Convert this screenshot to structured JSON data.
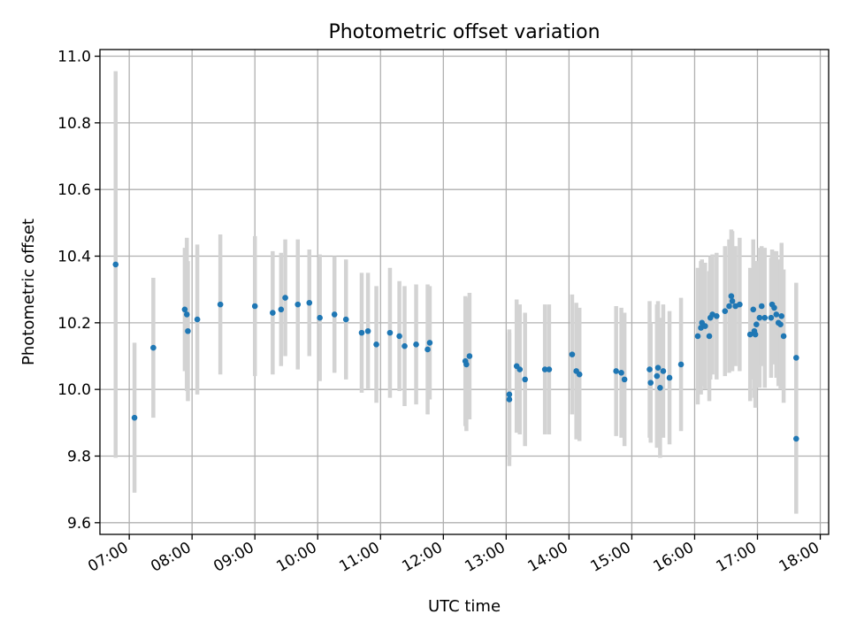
{
  "chart_data": {
    "type": "scatter",
    "title": "Photometric offset variation",
    "xlabel": "UTC time",
    "ylabel": "Photometric offset",
    "xlim": [
      "06:32",
      "18:08"
    ],
    "ylim": [
      9.565,
      11.02
    ],
    "xticks": [
      "07:00",
      "08:00",
      "09:00",
      "10:00",
      "11:00",
      "12:00",
      "13:00",
      "14:00",
      "15:00",
      "16:00",
      "17:00",
      "18:00"
    ],
    "yticks": [
      9.6,
      9.8,
      10.0,
      10.2,
      10.4,
      10.6,
      10.8,
      11.0
    ],
    "grid": true,
    "colors": {
      "point": "#1f77b4",
      "errorbar": "#d3d3d3",
      "grid": "#b0b0b0"
    },
    "series": [
      {
        "x": [
          "06:47",
          "07:05",
          "07:23",
          "07:53",
          "07:55",
          "07:56",
          "08:05",
          "08:27",
          "09:00",
          "09:17",
          "09:25",
          "09:29",
          "09:41",
          "09:52",
          "10:02",
          "10:16",
          "10:27",
          "10:42",
          "10:48",
          "10:56",
          "11:09",
          "11:18",
          "11:23",
          "11:34",
          "11:45",
          "11:47",
          "12:21",
          "12:22",
          "12:25",
          "13:03",
          "13:03",
          "13:10",
          "13:13",
          "13:18",
          "13:37",
          "13:41",
          "14:03",
          "14:07",
          "14:10",
          "14:45",
          "14:50",
          "14:53",
          "15:17",
          "15:18",
          "15:24",
          "15:25",
          "15:27",
          "15:30",
          "15:36",
          "15:47",
          "16:03",
          "16:06",
          "16:07",
          "16:10",
          "16:14",
          "16:15",
          "16:17",
          "16:21",
          "16:29",
          "16:33",
          "16:35",
          "16:36",
          "16:39",
          "16:43",
          "16:53",
          "16:56",
          "16:57",
          "16:58",
          "16:59",
          "17:02",
          "17:04",
          "17:07",
          "17:13",
          "17:14",
          "17:16",
          "17:18",
          "17:20",
          "17:22",
          "17:23",
          "17:25",
          "17:37"
        ],
        "y": [
          10.375,
          9.915,
          10.125,
          10.24,
          10.225,
          10.175,
          10.21,
          10.255,
          10.25,
          10.23,
          10.24,
          10.275,
          10.255,
          10.26,
          10.215,
          10.225,
          10.21,
          10.17,
          10.175,
          10.135,
          10.17,
          10.16,
          10.13,
          10.135,
          10.12,
          10.14,
          10.085,
          10.075,
          10.1,
          9.985,
          9.97,
          10.07,
          10.06,
          10.03,
          10.06,
          10.06,
          10.105,
          10.055,
          10.045,
          10.055,
          10.05,
          10.03,
          10.06,
          10.02,
          10.04,
          10.065,
          10.005,
          10.055,
          10.035,
          10.075,
          10.16,
          10.185,
          10.2,
          10.19,
          10.16,
          10.215,
          10.225,
          10.22,
          10.235,
          10.25,
          10.28,
          10.265,
          10.25,
          10.255,
          10.165,
          10.24,
          10.175,
          10.165,
          10.195,
          10.215,
          10.25,
          10.215,
          10.215,
          10.255,
          10.245,
          10.225,
          10.2,
          10.195,
          10.22,
          10.16,
          10.095
        ],
        "err": [
          0.58,
          0.225,
          0.21,
          0.185,
          0.23,
          0.21,
          0.225,
          0.21,
          0.21,
          0.185,
          0.17,
          0.175,
          0.195,
          0.16,
          0.19,
          0.175,
          0.18,
          0.18,
          0.175,
          0.175,
          0.195,
          0.165,
          0.18,
          0.18,
          0.195,
          0.17,
          0.195,
          0.2,
          0.19,
          0.195,
          0.2,
          0.2,
          0.195,
          0.2,
          0.195,
          0.195,
          0.18,
          0.205,
          0.2,
          0.195,
          0.195,
          0.2,
          0.205,
          0.18,
          0.215,
          0.2,
          0.21,
          0.2,
          0.2,
          0.2,
          0.205,
          0.2,
          0.19,
          0.19,
          0.195,
          0.185,
          0.18,
          0.19,
          0.195,
          0.2,
          0.2,
          0.21,
          0.18,
          0.2,
          0.2,
          0.21,
          0.2,
          0.22,
          0.19,
          0.21,
          0.18,
          0.21,
          0.18,
          0.165,
          0.17,
          0.19,
          0.19,
          0.195,
          0.22,
          0.2,
          0.225
        ]
      },
      {
        "x": [
          "17:37"
        ],
        "y": [
          9.852
        ],
        "err": [
          0.225
        ]
      }
    ]
  }
}
